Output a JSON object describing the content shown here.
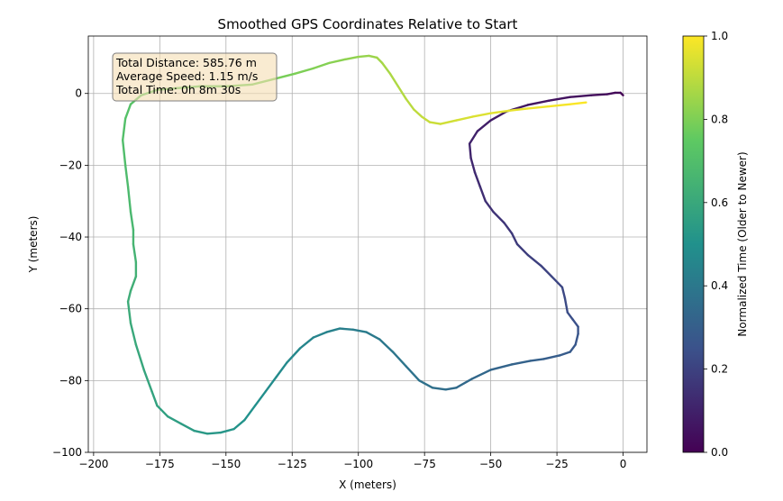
{
  "chart_data": {
    "type": "line",
    "title": "Smoothed GPS Coordinates Relative to Start",
    "xlabel": "X (meters)",
    "ylabel": "Y (meters)",
    "xlim": [
      -202,
      9
    ],
    "ylim": [
      -100,
      16
    ],
    "xticks": [
      -200,
      -175,
      -150,
      -125,
      -100,
      -75,
      -50,
      -25,
      0
    ],
    "xtick_labels": [
      "−200",
      "−175",
      "−150",
      "−125",
      "−100",
      "−75",
      "−50",
      "−25",
      "0"
    ],
    "yticks": [
      -100,
      -80,
      -60,
      -40,
      -20,
      0
    ],
    "ytick_labels": [
      "−100",
      "−80",
      "−60",
      "−40",
      "−20",
      "0"
    ],
    "grid": true,
    "colormap": "viridis",
    "colormap_stops": [
      "#440154",
      "#3b528b",
      "#21918c",
      "#5ec962",
      "#fde725"
    ],
    "colorbar": {
      "label": "Normalized Time (Older to Newer)",
      "range": [
        0,
        1
      ],
      "ticks": [
        0.0,
        0.2,
        0.4,
        0.6,
        0.8,
        1.0
      ],
      "tick_labels": [
        "0.0",
        "0.2",
        "0.4",
        "0.6",
        "0.8",
        "1.0"
      ]
    },
    "annotation": {
      "lines": [
        "Total Distance: 585.76 m",
        "Average Speed: 1.15 m/s",
        "Total Time: 0h 8m 30s"
      ],
      "placement": "top-left",
      "background": "#f5deb3"
    },
    "path": [
      [
        0,
        -0.5
      ],
      [
        -1,
        0.2
      ],
      [
        -3,
        0.2
      ],
      [
        -6,
        -0.2
      ],
      [
        -12,
        -0.5
      ],
      [
        -20,
        -1
      ],
      [
        -28,
        -2
      ],
      [
        -36,
        -3.2
      ],
      [
        -44,
        -5
      ],
      [
        -50,
        -7.5
      ],
      [
        -55,
        -10.5
      ],
      [
        -58,
        -14
      ],
      [
        -57.5,
        -18
      ],
      [
        -56,
        -22
      ],
      [
        -54,
        -26
      ],
      [
        -52,
        -30
      ],
      [
        -49,
        -33
      ],
      [
        -45,
        -36
      ],
      [
        -42,
        -39
      ],
      [
        -40,
        -42
      ],
      [
        -36,
        -45
      ],
      [
        -31,
        -48
      ],
      [
        -27,
        -51
      ],
      [
        -23,
        -54
      ],
      [
        -22,
        -57
      ],
      [
        -21,
        -61
      ],
      [
        -19,
        -63
      ],
      [
        -17,
        -65
      ],
      [
        -17,
        -67
      ],
      [
        -18,
        -70
      ],
      [
        -20,
        -72
      ],
      [
        -24,
        -73
      ],
      [
        -30,
        -74
      ],
      [
        -35,
        -74.5
      ],
      [
        -42,
        -75.5
      ],
      [
        -50,
        -77
      ],
      [
        -57,
        -79.5
      ],
      [
        -63,
        -82
      ],
      [
        -67,
        -82.5
      ],
      [
        -72,
        -82
      ],
      [
        -77,
        -80
      ],
      [
        -82,
        -76
      ],
      [
        -87,
        -72
      ],
      [
        -92,
        -68.5
      ],
      [
        -97,
        -66.5
      ],
      [
        -102,
        -65.8
      ],
      [
        -107,
        -65.5
      ],
      [
        -112,
        -66.5
      ],
      [
        -117,
        -68
      ],
      [
        -122,
        -71
      ],
      [
        -127,
        -75
      ],
      [
        -131,
        -79
      ],
      [
        -135,
        -83
      ],
      [
        -139,
        -87
      ],
      [
        -143,
        -91
      ],
      [
        -147,
        -93.5
      ],
      [
        -152,
        -94.5
      ],
      [
        -157,
        -94.8
      ],
      [
        -162,
        -94
      ],
      [
        -167,
        -92
      ],
      [
        -172,
        -90
      ],
      [
        -176,
        -87
      ],
      [
        -178,
        -83
      ],
      [
        -181,
        -77
      ],
      [
        -184,
        -70
      ],
      [
        -186,
        -64
      ],
      [
        -187,
        -58
      ],
      [
        -186,
        -55
      ],
      [
        -184,
        -51
      ],
      [
        -184,
        -47
      ],
      [
        -185,
        -42
      ],
      [
        -185,
        -38
      ],
      [
        -186,
        -33
      ],
      [
        -187,
        -26
      ],
      [
        -188,
        -20
      ],
      [
        -189,
        -13
      ],
      [
        -188,
        -7
      ],
      [
        -186,
        -3
      ],
      [
        -182,
        -0.5
      ],
      [
        -176,
        1
      ],
      [
        -168,
        1.5
      ],
      [
        -160,
        2
      ],
      [
        -150,
        2
      ],
      [
        -140,
        2.5
      ],
      [
        -132,
        4
      ],
      [
        -124,
        5.5
      ],
      [
        -117,
        7
      ],
      [
        -111,
        8.5
      ],
      [
        -105,
        9.5
      ],
      [
        -100,
        10.2
      ],
      [
        -96,
        10.5
      ],
      [
        -93,
        10
      ],
      [
        -91,
        8.5
      ],
      [
        -88,
        5.5
      ],
      [
        -85,
        2
      ],
      [
        -82,
        -1.5
      ],
      [
        -79,
        -4.5
      ],
      [
        -76,
        -6.5
      ],
      [
        -73,
        -8
      ],
      [
        -69,
        -8.5
      ],
      [
        -63,
        -7.5
      ],
      [
        -57,
        -6.5
      ],
      [
        -50,
        -5.5
      ],
      [
        -43,
        -4.8
      ],
      [
        -36,
        -4.2
      ],
      [
        -28,
        -3.6
      ],
      [
        -20,
        -3
      ],
      [
        -14,
        -2.5
      ]
    ]
  }
}
